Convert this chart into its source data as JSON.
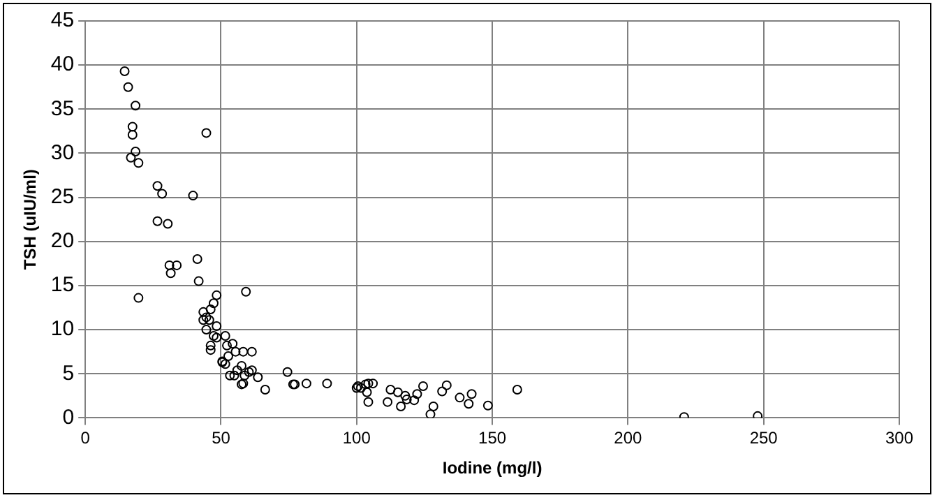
{
  "chart_data": {
    "type": "scatter",
    "xlabel": "Iodine (mg/l)",
    "ylabel": "TSH (uIU/ml)",
    "xlim": [
      0,
      300
    ],
    "xticks": [
      0,
      50,
      100,
      150,
      200,
      250,
      300
    ],
    "ylim": [
      0,
      45
    ],
    "yticks": [
      0,
      5,
      10,
      15,
      20,
      25,
      30,
      35,
      40,
      45
    ],
    "grid": true,
    "legend": false,
    "marker": "circle",
    "series": [
      {
        "color": "#000000",
        "x": [
          14.5,
          15.8,
          18.5,
          17.4,
          17.4,
          44.6,
          18.5,
          16.8,
          19.6,
          26.6,
          28.3,
          39.7,
          26.6,
          30.4,
          41.3,
          41.8,
          31,
          33.7,
          31.5,
          48.4,
          59.2,
          19.6,
          47.3,
          46.2,
          43.5,
          44.6,
          43.5,
          45.7,
          48.4,
          44.6,
          47.3,
          48.4,
          51.6,
          54.3,
          52.2,
          55.4,
          58.2,
          61.4,
          46.2,
          46.2,
          52.7,
          50.5,
          50.5,
          51.6,
          57.6,
          56,
          61.4,
          53.3,
          54.9,
          58.7,
          60.3,
          63.6,
          57.6,
          58.2,
          66.3,
          74.5,
          76.6,
          77.2,
          81.5,
          89.1,
          100,
          100.5,
          101.6,
          103.3,
          104.3,
          106,
          103.8,
          104.3,
          112.5,
          115.2,
          111.4,
          117.9,
          118.5,
          116.3,
          121.2,
          122.3,
          124.5,
          131.5,
          133.2,
          128.3,
          127.2,
          138,
          142.4,
          141.3,
          148.4,
          159.2,
          220.7,
          247.8
        ],
        "values": [
          39.3,
          37.5,
          35.4,
          33,
          32.1,
          32.3,
          30.2,
          29.5,
          28.9,
          26.3,
          25.4,
          25.2,
          22.3,
          22,
          18,
          15.5,
          17.3,
          17.3,
          16.4,
          13.9,
          14.3,
          13.6,
          13,
          12.3,
          12,
          11.4,
          11.1,
          11.1,
          10.4,
          10,
          9.3,
          9.1,
          9.3,
          8.4,
          8.2,
          7.5,
          7.5,
          7.5,
          8.2,
          7.7,
          7,
          6.4,
          6.3,
          6.1,
          5.9,
          5.4,
          5.4,
          4.8,
          4.8,
          4.8,
          5.2,
          4.6,
          3.8,
          3.9,
          3.2,
          5.2,
          3.8,
          3.8,
          3.9,
          3.9,
          3.4,
          3.6,
          3.4,
          3.8,
          3.9,
          3.9,
          2.9,
          1.8,
          3.2,
          2.9,
          1.8,
          2.5,
          2.1,
          1.3,
          2,
          2.7,
          3.6,
          3,
          3.7,
          1.3,
          0.4,
          2.3,
          2.7,
          1.6,
          1.4,
          3.2,
          0.1,
          0.2
        ]
      }
    ]
  }
}
